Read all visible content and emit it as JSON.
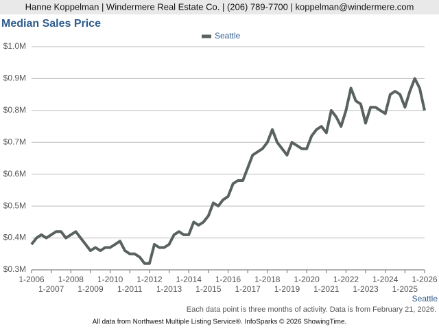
{
  "header": "Hanne Koppelman | Windermere Real Estate Co. | (206) 789-7700 | koppelman@windermere.com",
  "chart_data": {
    "type": "line",
    "title": "Median Sales Price",
    "x": [
      "1-2006",
      "4-2006",
      "7-2006",
      "10-2006",
      "1-2007",
      "4-2007",
      "7-2007",
      "10-2007",
      "1-2008",
      "4-2008",
      "7-2008",
      "10-2008",
      "1-2009",
      "4-2009",
      "7-2009",
      "10-2009",
      "1-2010",
      "4-2010",
      "7-2010",
      "10-2010",
      "1-2011",
      "4-2011",
      "7-2011",
      "10-2011",
      "1-2012",
      "4-2012",
      "7-2012",
      "10-2012",
      "1-2013",
      "4-2013",
      "7-2013",
      "10-2013",
      "1-2014",
      "4-2014",
      "7-2014",
      "10-2014",
      "1-2015",
      "4-2015",
      "7-2015",
      "10-2015",
      "1-2016",
      "4-2016",
      "7-2016",
      "10-2016",
      "1-2017",
      "4-2017",
      "7-2017",
      "10-2017",
      "1-2018",
      "4-2018",
      "7-2018",
      "10-2018",
      "1-2019",
      "4-2019",
      "7-2019",
      "10-2019",
      "1-2020",
      "4-2020",
      "7-2020",
      "10-2020",
      "1-2021",
      "4-2021",
      "7-2021",
      "10-2021",
      "1-2022",
      "4-2022",
      "7-2022",
      "10-2022",
      "1-2023",
      "4-2023",
      "7-2023",
      "10-2023",
      "1-2024",
      "4-2024",
      "7-2024",
      "10-2024",
      "1-2025",
      "4-2025",
      "7-2025",
      "10-2025",
      "1-2026"
    ],
    "series": [
      {
        "name": "Seattle",
        "color": "#59625f",
        "values": [
          0.38,
          0.4,
          0.41,
          0.4,
          0.41,
          0.42,
          0.42,
          0.4,
          0.41,
          0.42,
          0.4,
          0.38,
          0.36,
          0.37,
          0.36,
          0.37,
          0.37,
          0.38,
          0.39,
          0.36,
          0.35,
          0.35,
          0.34,
          0.32,
          0.32,
          0.38,
          0.37,
          0.37,
          0.38,
          0.41,
          0.42,
          0.41,
          0.41,
          0.45,
          0.44,
          0.45,
          0.47,
          0.51,
          0.5,
          0.52,
          0.53,
          0.57,
          0.58,
          0.58,
          0.62,
          0.66,
          0.67,
          0.68,
          0.7,
          0.74,
          0.7,
          0.68,
          0.66,
          0.7,
          0.69,
          0.68,
          0.68,
          0.72,
          0.74,
          0.75,
          0.73,
          0.8,
          0.78,
          0.75,
          0.8,
          0.87,
          0.83,
          0.82,
          0.76,
          0.81,
          0.81,
          0.8,
          0.79,
          0.85,
          0.86,
          0.85,
          0.81,
          0.86,
          0.9,
          0.87,
          0.8
        ]
      }
    ],
    "ylim": [
      0.3,
      1.0
    ],
    "yticks": [
      {
        "value": 0.3,
        "label": "$0.3M"
      },
      {
        "value": 0.4,
        "label": "$0.4M"
      },
      {
        "value": 0.5,
        "label": "$0.5M"
      },
      {
        "value": 0.6,
        "label": "$0.6M"
      },
      {
        "value": 0.7,
        "label": "$0.7M"
      },
      {
        "value": 0.8,
        "label": "$0.8M"
      },
      {
        "value": 0.9,
        "label": "$0.9M"
      },
      {
        "value": 1.0,
        "label": "$1.0M"
      }
    ],
    "xticks": [
      "1-2006",
      "1-2007",
      "1-2008",
      "1-2009",
      "1-2010",
      "1-2011",
      "1-2012",
      "1-2013",
      "1-2014",
      "1-2015",
      "1-2016",
      "1-2017",
      "1-2018",
      "1-2019",
      "1-2020",
      "1-2021",
      "1-2022",
      "1-2023",
      "1-2024",
      "1-2025",
      "1-2026"
    ],
    "x_label": "Seattle",
    "grid": true,
    "note": "Each data point is three months of activity. Data is from February 21, 2026.",
    "source": "All data from Northwest Multiple Listing Service®. InfoSparks © 2026 ShowingTime."
  }
}
